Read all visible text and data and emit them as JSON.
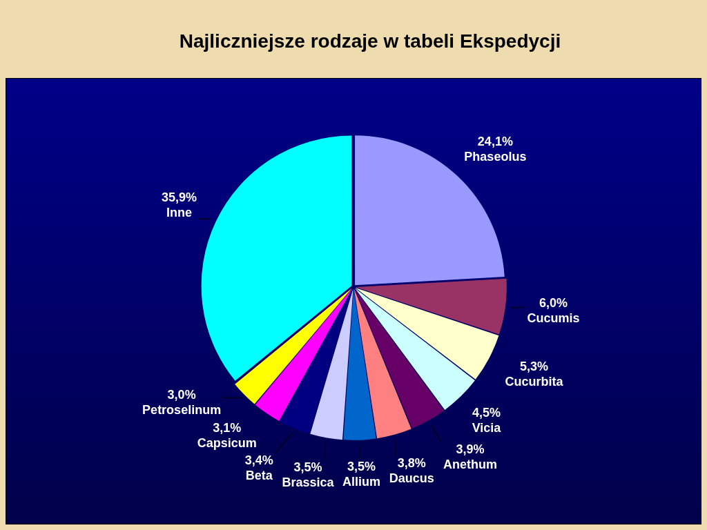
{
  "chart_data": {
    "type": "pie",
    "title": "Najliczniejsze rodzaje w tabeli Ekspedycji",
    "categories": [
      "Phaseolus",
      "Cucumis",
      "Cucurbita",
      "Vicia",
      "Anethum",
      "Daucus",
      "Allium",
      "Brassica",
      "Beta",
      "Capsicum",
      "Petroselinum",
      "Inne"
    ],
    "values": [
      24.1,
      6.0,
      5.3,
      4.5,
      3.9,
      3.8,
      3.5,
      3.5,
      3.4,
      3.1,
      3.0,
      35.9
    ],
    "colors": [
      "#9999ff",
      "#993366",
      "#ffffcc",
      "#ccffff",
      "#660066",
      "#ff8080",
      "#0066cc",
      "#ccccff",
      "#000080",
      "#ff00ff",
      "#ffff00",
      "#00ffff"
    ],
    "value_labels": [
      "24,1%",
      "6,0%",
      "5,3%",
      "4,5%",
      "3,9%",
      "3,8%",
      "3,5%",
      "3,5%",
      "3,4%",
      "3,1%",
      "3,0%",
      "35,9%"
    ]
  }
}
